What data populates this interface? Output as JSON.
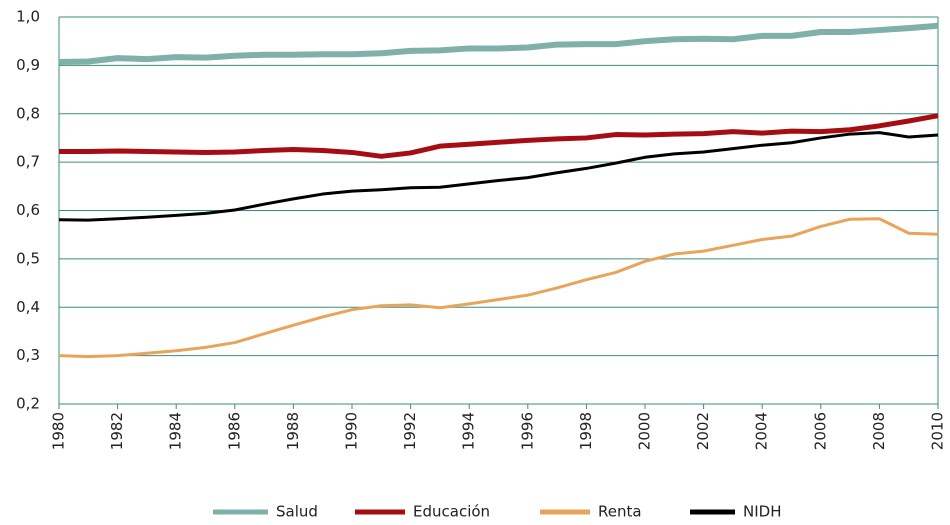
{
  "chart_data": {
    "type": "line",
    "x": [
      1980,
      1981,
      1982,
      1983,
      1984,
      1985,
      1986,
      1987,
      1988,
      1989,
      1990,
      1991,
      1992,
      1993,
      1994,
      1995,
      1996,
      1997,
      1998,
      1999,
      2000,
      2001,
      2002,
      2003,
      2004,
      2005,
      2006,
      2007,
      2008,
      2009,
      2010
    ],
    "series": [
      {
        "name": "Salud",
        "color": "#7fb0aa",
        "values": [
          0.907,
          0.908,
          0.915,
          0.913,
          0.917,
          0.916,
          0.92,
          0.922,
          0.922,
          0.923,
          0.923,
          0.925,
          0.93,
          0.931,
          0.935,
          0.935,
          0.937,
          0.943,
          0.944,
          0.944,
          0.95,
          0.954,
          0.955,
          0.954,
          0.961,
          0.961,
          0.969,
          0.969,
          0.973,
          0.977,
          0.982
        ]
      },
      {
        "name": "Educación",
        "color": "#a50d12",
        "values": [
          0.722,
          0.722,
          0.723,
          0.722,
          0.721,
          0.72,
          0.721,
          0.724,
          0.726,
          0.724,
          0.72,
          0.712,
          0.719,
          0.733,
          0.737,
          0.741,
          0.745,
          0.748,
          0.75,
          0.757,
          0.756,
          0.758,
          0.759,
          0.763,
          0.76,
          0.764,
          0.763,
          0.767,
          0.775,
          0.785,
          0.796
        ]
      },
      {
        "name": "Renta",
        "color": "#e9a45c",
        "values": [
          0.3,
          0.298,
          0.3,
          0.305,
          0.31,
          0.317,
          0.327,
          0.345,
          0.363,
          0.38,
          0.395,
          0.403,
          0.405,
          0.399,
          0.407,
          0.416,
          0.425,
          0.44,
          0.457,
          0.472,
          0.495,
          0.51,
          0.516,
          0.528,
          0.54,
          0.547,
          0.567,
          0.582,
          0.583,
          0.553,
          0.551
        ]
      },
      {
        "name": "NIDH",
        "color": "#000000",
        "values": [
          0.581,
          0.58,
          0.583,
          0.586,
          0.59,
          0.594,
          0.601,
          0.613,
          0.624,
          0.634,
          0.64,
          0.643,
          0.647,
          0.648,
          0.655,
          0.662,
          0.668,
          0.678,
          0.687,
          0.698,
          0.71,
          0.717,
          0.721,
          0.728,
          0.735,
          0.74,
          0.75,
          0.758,
          0.761,
          0.752,
          0.756
        ]
      }
    ],
    "xlim": [
      1980,
      2010
    ],
    "xticks": [
      1980,
      1982,
      1984,
      1986,
      1988,
      1990,
      1992,
      1994,
      1996,
      1998,
      2000,
      2002,
      2004,
      2006,
      2008,
      2010
    ],
    "ylim": [
      0.2,
      1.0
    ],
    "yticks": [
      {
        "value": 0.2,
        "label": "0,2"
      },
      {
        "value": 0.3,
        "label": "0,3"
      },
      {
        "value": 0.4,
        "label": "0,4"
      },
      {
        "value": 0.5,
        "label": "0,5"
      },
      {
        "value": 0.6,
        "label": "0,6"
      },
      {
        "value": 0.7,
        "label": "0,7"
      },
      {
        "value": 0.8,
        "label": "0,8"
      },
      {
        "value": 0.9,
        "label": "0,9"
      },
      {
        "value": 1.0,
        "label": "1,0"
      }
    ],
    "grid": true,
    "legend": "bottom"
  }
}
